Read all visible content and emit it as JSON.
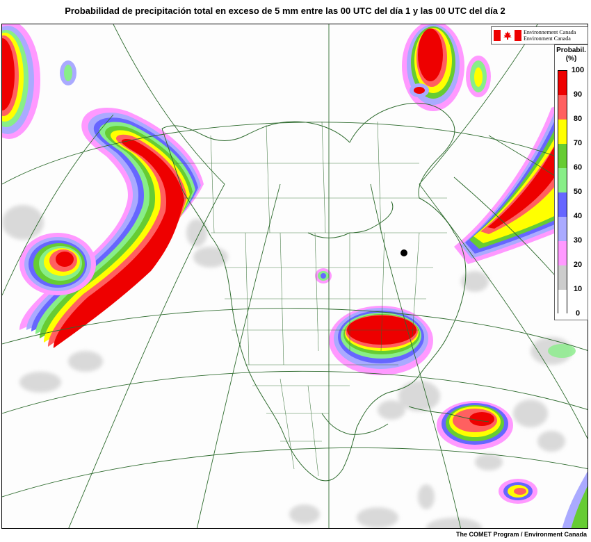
{
  "title": "Probabilidad de precipitación total en exceso de 5 mm entre las 00 UTC del día 1 y las 00 UTC del día 2",
  "logo": {
    "line1": "Environnement Canada",
    "line2": "Environment Canada",
    "icon": "canada-flag-icon"
  },
  "legend": {
    "title_line1": "Probabil.",
    "title_line2": "(%)",
    "ticks": [
      "100",
      "90",
      "80",
      "70",
      "60",
      "50",
      "40",
      "30",
      "20",
      "10",
      "0"
    ],
    "colors": [
      "#ee0000",
      "#ff6060",
      "#ffff00",
      "#66cc33",
      "#88ee88",
      "#6666ff",
      "#aaaaff",
      "#ff99ff",
      "#cccccc",
      "#ffffff"
    ]
  },
  "footer": "The COMET Program / Environment Canada"
}
